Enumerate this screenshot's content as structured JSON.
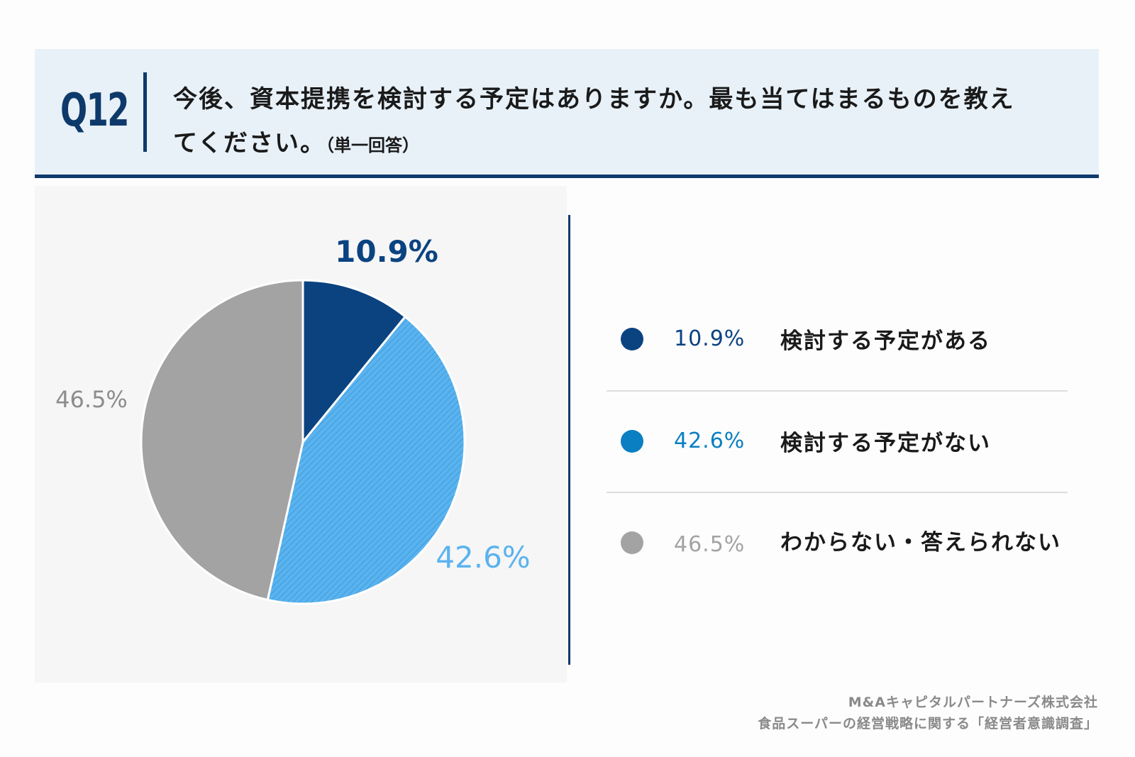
{
  "question": {
    "number": "Q12",
    "text_line1": "今後、資本提携を検討する予定はありますか。最も当てはまるものを教え",
    "text_line2": "てください。",
    "note": "（単一回答）"
  },
  "chart_data": {
    "type": "pie",
    "title": "",
    "slices": [
      {
        "label": "検討する予定がある",
        "value": 10.9,
        "display": "10.9%",
        "color": "#0b4381",
        "legend_color": "#0b4381",
        "pattern": false
      },
      {
        "label": "検討する予定がない",
        "value": 42.6,
        "display": "42.6%",
        "color": "#5bb3ee",
        "legend_color": "#0a7fc1",
        "pattern": true
      },
      {
        "label": "わからない・答えられない",
        "value": 46.5,
        "display": "46.5%",
        "color": "#a3a3a3",
        "legend_color": "#a3a3a3",
        "pattern": false
      }
    ],
    "label_colors": [
      "#0b4381",
      "#5bb3ee",
      "#8c8c8c"
    ],
    "legend_pct_colors": [
      "#0b4381",
      "#0a7fc1",
      "#a3a3a3"
    ]
  },
  "footer": {
    "line1": "M&Aキャピタルパートナーズ株式会社",
    "line2": "食品スーパーの経営戦略に関する「経営者意識調査」"
  }
}
